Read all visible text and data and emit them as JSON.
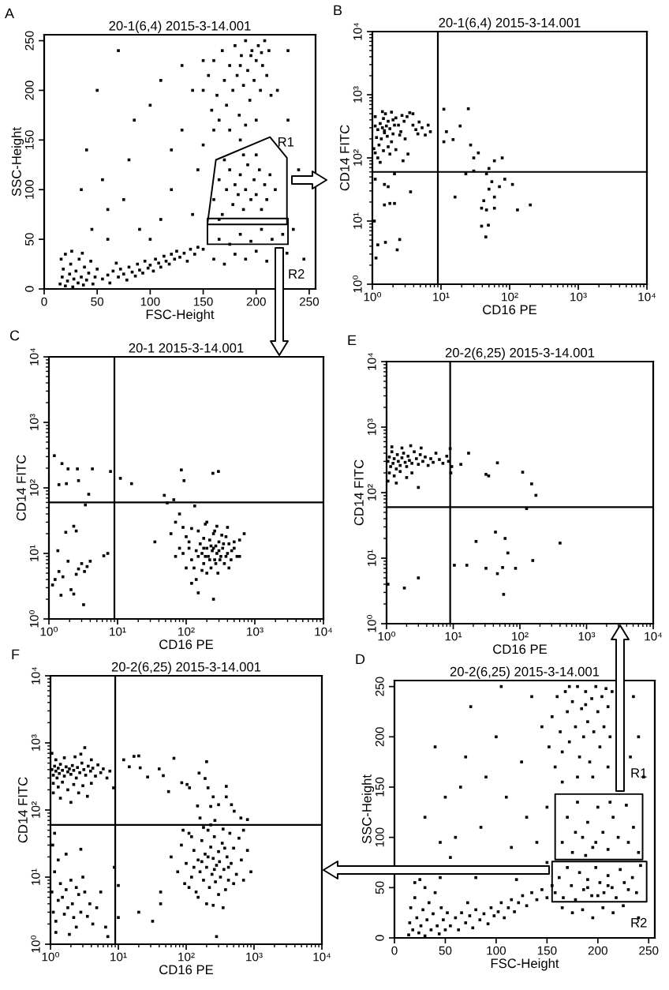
{
  "chart_data": [
    {
      "type": "scatter",
      "title": "20-1(6,4) 2015-3-14.001",
      "xlabel": "FSC-Height",
      "ylabel": "SSC-Height",
      "annotations": [
        "A",
        "R1",
        "R2"
      ],
      "xlim": [
        0,
        256
      ],
      "ylim": [
        0,
        256
      ],
      "xticks": [
        0,
        50,
        100,
        150,
        200,
        250
      ],
      "yticks": [
        0,
        50,
        100,
        150,
        200,
        250
      ],
      "marker": "square",
      "series": [
        {
          "color": "#000000",
          "x": [
            15,
            17,
            18,
            20,
            22,
            24,
            25,
            27,
            28,
            30,
            32,
            33,
            35,
            37,
            38,
            40,
            42,
            44,
            46,
            48,
            50,
            16,
            20,
            26,
            36,
            55,
            60,
            62,
            65,
            70,
            72,
            75,
            78,
            80,
            83,
            86,
            88,
            90,
            93,
            95,
            98,
            100,
            103,
            105,
            108,
            110,
            113,
            115,
            118,
            120,
            123,
            125,
            128,
            132,
            138,
            142,
            145,
            135,
            68,
            150,
            155,
            158,
            160,
            163,
            165,
            168,
            170,
            172,
            175,
            178,
            180,
            182,
            184,
            186,
            188,
            190,
            192,
            194,
            196,
            198,
            200,
            202,
            204,
            206,
            208,
            210,
            212,
            214,
            190,
            175,
            185,
            200,
            160,
            195,
            185,
            205,
            160,
            165,
            168,
            172,
            175,
            178,
            180,
            183,
            185,
            188,
            190,
            192,
            195,
            198,
            200,
            203,
            205,
            208,
            210,
            213,
            170,
            188,
            200,
            165,
            218,
            150,
            160,
            165,
            170,
            175,
            180,
            185,
            190,
            195,
            200,
            205,
            210,
            215,
            229,
            225,
            40,
            50,
            60,
            70,
            80,
            90,
            100,
            110,
            120,
            130,
            140,
            145,
            150,
            100,
            60,
            45,
            35,
            55,
            75,
            85,
            120,
            130,
            140,
            230,
            240,
            235,
            245,
            230,
            220,
            110,
            150
          ],
          "values": [
            5,
            12,
            20,
            3,
            8,
            15,
            25,
            2,
            10,
            18,
            6,
            30,
            12,
            4,
            22,
            9,
            16,
            28,
            5,
            12,
            20,
            30,
            35,
            38,
            36,
            10,
            14,
            6,
            18,
            12,
            20,
            15,
            9,
            22,
            17,
            13,
            25,
            19,
            16,
            28,
            21,
            24,
            18,
            30,
            26,
            22,
            33,
            28,
            25,
            35,
            30,
            38,
            32,
            36,
            40,
            35,
            42,
            28,
            26,
            200,
            215,
            180,
            230,
            195,
            170,
            240,
            210,
            185,
            225,
            200,
            245,
            215,
            175,
            235,
            205,
            250,
            220,
            190,
            240,
            210,
            230,
            245,
            200,
            225,
            250,
            215,
            240,
            195,
            165,
            160,
            150,
            170,
            160,
            235,
            225,
            238,
            90,
            110,
            75,
            100,
            120,
            85,
            105,
            95,
            115,
            80,
            100,
            125,
            90,
            110,
            95,
            120,
            80,
            105,
            90,
            115,
            130,
            135,
            135,
            70,
            100,
            40,
            30,
            50,
            25,
            45,
            35,
            55,
            30,
            48,
            38,
            60,
            28,
            50,
            36,
            55,
            140,
            200,
            80,
            240,
            130,
            60,
            185,
            210,
            100,
            160,
            75,
            120,
            230,
            50,
            50,
            60,
            100,
            110,
            90,
            170,
            140,
            225,
            200,
            170,
            120,
            60,
            30,
            240,
            200,
            70,
            145
          ]
        }
      ]
    },
    {
      "type": "scatter",
      "title": "20-1(6,4) 2015-3-14.001",
      "xlabel": "CD16 PE",
      "ylabel": "CD14 FITC",
      "annotations": [
        "B"
      ],
      "log": "xy",
      "xlim": [
        1,
        10000
      ],
      "ylim": [
        1,
        10000
      ],
      "xticks": [
        {
          "value": 1,
          "label": "10⁰"
        },
        {
          "value": 10,
          "label": "10¹"
        },
        {
          "value": 100,
          "label": "10²"
        },
        {
          "value": 1000,
          "label": "10³"
        },
        {
          "value": 10000,
          "label": "10⁴"
        }
      ],
      "yticks": [
        {
          "value": 1,
          "label": "10⁰"
        },
        {
          "value": 10,
          "label": "10¹"
        },
        {
          "value": 100,
          "label": "10²"
        },
        {
          "value": 1000,
          "label": "10³"
        },
        {
          "value": 10000,
          "label": "10⁴"
        }
      ],
      "marker": "square",
      "ref_lines": [
        {
          "axis": "x",
          "value": 9,
          "color": "#000000"
        },
        {
          "axis": "y",
          "value": 60,
          "color": "#000000"
        }
      ],
      "series": [
        {
          "color": "#000000",
          "x": [
            1.1,
            1.2,
            1.3,
            1.4,
            1.5,
            1.6,
            1.7,
            1.8,
            2.0,
            2.1,
            1.15,
            1.25,
            1.35,
            1.45,
            1.55,
            1.65,
            1.9,
            2.0,
            2.2,
            2.4,
            2.6,
            2.9,
            3.2,
            3.5,
            3.9,
            4.3,
            4.8,
            5.3,
            5.9,
            6.5,
            7.0,
            1.05,
            1.1,
            1.2,
            1.45,
            1.8,
            2.2,
            2.8,
            3.3,
            1.4,
            1.9,
            2.5,
            1.1,
            1.5,
            1.7,
            3.0,
            3.9,
            1.3,
            2.7,
            4.6,
            11,
            25,
            12,
            19,
            15,
            27,
            30,
            35,
            50,
            60,
            78,
            46,
            55,
            71,
            85,
            110,
            50,
            60,
            42,
            39,
            46,
            60,
            130,
            200,
            39,
            49,
            45,
            16,
            11,
            23,
            30,
            1.07,
            1.2,
            1.13,
            1.5,
            1.8,
            2.1,
            1.55,
            2.3,
            2.5,
            3.6,
            1.5,
            1.7,
            2.1,
            1.1
          ],
          "values": [
            320,
            280,
            350,
            300,
            250,
            320,
            380,
            290,
            240,
            330,
            210,
            160,
            200,
            420,
            500,
            220,
            180,
            400,
            430,
            330,
            260,
            380,
            450,
            520,
            330,
            280,
            370,
            300,
            230,
            330,
            260,
            140,
            120,
            100,
            130,
            115,
            135,
            90,
            115,
            540,
            530,
            230,
            450,
            270,
            150,
            200,
            500,
            85,
            470,
            240,
            590,
            600,
            260,
            320,
            195,
            160,
            100,
            120,
            68,
            90,
            100,
            56,
            42,
            35,
            46,
            38,
            32,
            24,
            21,
            16,
            15,
            16,
            15,
            18,
            8.3,
            8.6,
            5.6,
            24,
            180,
            56,
            62,
            10,
            4.2,
            2.6,
            18,
            19,
            19,
            4.6,
            3.5,
            5.1,
            29,
            38,
            35,
            56,
            46
          ]
        }
      ]
    },
    {
      "type": "scatter",
      "title": "20-1 2015-3-14.001",
      "xlabel": "CD16 PE",
      "ylabel": "CD14 FITC",
      "annotations": [
        "C"
      ],
      "log": "xy",
      "xlim": [
        1,
        10000
      ],
      "ylim": [
        1,
        10000
      ],
      "xticks": [
        {
          "value": 1,
          "label": "10⁰"
        },
        {
          "value": 10,
          "label": "10¹"
        },
        {
          "value": 100,
          "label": "10²"
        },
        {
          "value": 1000,
          "label": "10³"
        },
        {
          "value": 10000,
          "label": "10⁴"
        }
      ],
      "yticks": [
        {
          "value": 1,
          "label": "10⁰"
        },
        {
          "value": 10,
          "label": "10¹"
        },
        {
          "value": 100,
          "label": "10²"
        },
        {
          "value": 1000,
          "label": "10³"
        },
        {
          "value": 10000,
          "label": "10⁴"
        }
      ],
      "marker": "square",
      "ref_lines": [
        {
          "axis": "x",
          "value": 9,
          "color": "#000000"
        },
        {
          "axis": "y",
          "value": 60,
          "color": "#000000"
        }
      ],
      "series": [
        {
          "color": "#000000",
          "x": [
            1.2,
            1.55,
            1.9,
            2.6,
            4.3,
            7.9,
            11,
            16,
            1.4,
            1.8,
            2.7,
            3.8,
            3.4,
            85,
            93,
            245,
            295,
            48,
            53,
            66,
            133,
            1.35,
            1.76,
            2.3,
            2.5,
            1.23,
            1.4,
            1.6,
            2.1,
            2.3,
            2.7,
            3,
            3.3,
            3.6,
            4,
            1.9,
            3.2,
            1.5,
            6.3,
            7.2,
            1.13,
            2.5,
            35,
            60,
            70,
            80,
            90,
            100,
            110,
            120,
            130,
            140,
            150,
            160,
            170,
            180,
            190,
            200,
            210,
            220,
            230,
            240,
            250,
            260,
            270,
            280,
            290,
            300,
            320,
            340,
            360,
            380,
            400,
            420,
            450,
            500,
            550,
            600,
            700,
            100,
            120,
            150,
            180,
            200,
            220,
            250,
            270,
            300,
            330,
            350,
            380,
            420,
            460,
            90,
            110,
            140,
            170,
            190,
            230,
            260,
            310,
            150,
            250,
            120,
            80,
            70,
            200,
            280,
            400,
            500,
            600,
            180
          ],
          "values": [
            310,
            235,
            195,
            195,
            195,
            178,
            140,
            116,
            112,
            116,
            129,
            80,
            55,
            188,
            129,
            167,
            178,
            77,
            59,
            66,
            53,
            11,
            21,
            26,
            22,
            4,
            5.3,
            4.4,
            2.8,
            2.4,
            5.8,
            7,
            5.3,
            6.3,
            7.6,
            7.6,
            1.65,
            2.3,
            9.2,
            10,
            3.3,
            4.8,
            15,
            20,
            30,
            40,
            25,
            18,
            12,
            8,
            6,
            4,
            22,
            14,
            10,
            7,
            28,
            12,
            9,
            16,
            6,
            11,
            20,
            8,
            13,
            10,
            5,
            15,
            9,
            12,
            7,
            18,
            10,
            14,
            8,
            12,
            9,
            16,
            20,
            6,
            24,
            9,
            17,
            5,
            8,
            12,
            7,
            11,
            19,
            14,
            9,
            6,
            11,
            10,
            15,
            11,
            5.5,
            9,
            13,
            22,
            8,
            2.5,
            2,
            3.5,
            12,
            9,
            30,
            26,
            25,
            15,
            9,
            12
          ]
        }
      ]
    },
    {
      "type": "scatter",
      "title": "20-2(6,25) 2015-3-14.001",
      "xlabel": "CD16 PE",
      "ylabel": "CD14 FITC",
      "annotations": [
        "E"
      ],
      "log": "xy",
      "xlim": [
        1,
        10000
      ],
      "ylim": [
        1,
        10000
      ],
      "xticks": [
        {
          "value": 1,
          "label": "10⁰"
        },
        {
          "value": 10,
          "label": "10¹"
        },
        {
          "value": 100,
          "label": "10²"
        },
        {
          "value": 1000,
          "label": "10³"
        },
        {
          "value": 10000,
          "label": "10⁴"
        }
      ],
      "yticks": [
        {
          "value": 1,
          "label": "10⁰"
        },
        {
          "value": 10,
          "label": "10¹"
        },
        {
          "value": 100,
          "label": "10²"
        },
        {
          "value": 1000,
          "label": "10³"
        },
        {
          "value": 10000,
          "label": "10⁴"
        }
      ],
      "marker": "square",
      "ref_lines": [
        {
          "axis": "x",
          "value": 9,
          "color": "#000000"
        },
        {
          "axis": "y",
          "value": 60,
          "color": "#000000"
        }
      ],
      "series": [
        {
          "color": "#000000",
          "x": [
            1.05,
            1.1,
            1.15,
            1.2,
            1.25,
            1.3,
            1.4,
            1.45,
            1.5,
            1.6,
            1.7,
            1.8,
            1.9,
            2.0,
            2.1,
            2.2,
            2.4,
            2.6,
            2.8,
            3.0,
            3.2,
            3.5,
            3.8,
            4.2,
            4.6,
            5.0,
            5.5,
            6.2,
            7.0,
            8.0,
            9.0,
            1.1,
            1.3,
            1.6,
            2.0,
            2.4,
            3.0,
            1.2,
            1.7,
            2.3,
            3.3,
            1.05,
            1.4,
            9.5,
            9.2,
            8.5,
            17,
            13,
            46,
            31,
            34,
            110,
            150,
            174,
            126,
            43,
            22,
            60,
            66,
            400,
            156,
            10.4,
            16,
            31,
            46,
            55,
            86,
            57,
            3,
            1.85,
            1.05
          ],
          "values": [
            300,
            350,
            250,
            420,
            280,
            330,
            230,
            380,
            300,
            260,
            340,
            400,
            290,
            250,
            360,
            310,
            280,
            420,
            330,
            270,
            380,
            300,
            350,
            260,
            330,
            290,
            400,
            320,
            280,
            360,
            470,
            200,
            180,
            210,
            170,
            200,
            120,
            500,
            480,
            520,
            480,
            150,
            140,
            250,
            200,
            300,
            400,
            270,
            285,
            190,
            180,
            205,
            136,
            91,
            57,
            25,
            18,
            20,
            12,
            17,
            9.2,
            7.8,
            7.8,
            7,
            5.8,
            7.2,
            7,
            2.8,
            5,
            3.5,
            4.0
          ]
        }
      ]
    },
    {
      "type": "scatter",
      "title": "20-2(6,25) 2015-3-14.001",
      "xlabel": "CD16 PE",
      "ylabel": "CD14 FITC",
      "annotations": [
        "F"
      ],
      "log": "xy",
      "xlim": [
        1,
        10000
      ],
      "ylim": [
        1,
        10000
      ],
      "xticks": [
        {
          "value": 1,
          "label": "10⁰"
        },
        {
          "value": 10,
          "label": "10¹"
        },
        {
          "value": 100,
          "label": "10²"
        },
        {
          "value": 1000,
          "label": "10³"
        },
        {
          "value": 10000,
          "label": "10⁴"
        }
      ],
      "yticks": [
        {
          "value": 1,
          "label": "10⁰"
        },
        {
          "value": 10,
          "label": "10¹"
        },
        {
          "value": 100,
          "label": "10²"
        },
        {
          "value": 1000,
          "label": "10³"
        },
        {
          "value": 10000,
          "label": "10⁴"
        }
      ],
      "marker": "square",
      "ref_lines": [
        {
          "axis": "x",
          "value": 9,
          "color": "#000000"
        },
        {
          "axis": "y",
          "value": 60,
          "color": "#000000"
        }
      ],
      "series": [
        {
          "color": "#000000",
          "x": [
            1.05,
            1.1,
            1.15,
            1.2,
            1.25,
            1.3,
            1.35,
            1.4,
            1.5,
            1.6,
            1.7,
            1.8,
            1.9,
            2.0,
            2.1,
            2.2,
            2.4,
            2.5,
            2.7,
            2.9,
            3.1,
            3.3,
            3.6,
            3.9,
            4.2,
            4.6,
            5.0,
            5.5,
            6.0,
            6.8,
            7.5,
            1.1,
            1.3,
            1.5,
            1.8,
            2.2,
            2.6,
            3.0,
            3.5,
            4.0,
            1.2,
            1.6,
            2.3,
            3.2,
            4.0,
            1.1,
            1.4,
            2.0,
            1.05,
            2.8,
            12,
            17,
            20,
            14.5,
            27,
            40,
            46,
            66,
            55,
            86,
            103,
            112,
            155,
            200,
            210,
            250,
            230,
            390,
            390,
            300,
            510,
            640,
            800,
            160,
            265,
            147,
            190,
            465,
            21,
            8.5,
            60,
            75,
            85,
            95,
            100,
            110,
            120,
            130,
            140,
            150,
            160,
            170,
            180,
            190,
            200,
            210,
            220,
            230,
            240,
            250,
            260,
            270,
            280,
            300,
            320,
            340,
            360,
            380,
            400,
            420,
            440,
            460,
            500,
            550,
            600,
            650,
            700,
            800,
            900,
            150,
            200,
            250,
            300,
            120,
            180,
            230,
            350,
            500,
            130,
            170,
            210,
            260,
            310,
            370,
            420,
            90,
            110,
            350,
            280,
            700,
            20,
            32,
            42,
            42,
            10,
            10,
            8.7,
            1.05,
            1.1,
            1.2,
            1.3,
            1.4,
            1.5,
            1.6,
            1.7,
            1.8,
            2.0,
            2.1,
            2.2,
            2.4,
            2.6,
            2.8,
            3.0,
            3.2,
            3.5,
            3.8,
            4.2,
            4.8,
            5.5,
            6.5,
            7,
            1.15,
            1.3,
            1.7,
            2.8,
            1.08,
            1.15,
            1.2,
            2.4,
            1.9
          ],
          "values": [
            400,
            330,
            450,
            380,
            300,
            420,
            350,
            480,
            390,
            320,
            440,
            370,
            410,
            340,
            460,
            390,
            300,
            430,
            360,
            500,
            400,
            330,
            450,
            380,
            420,
            320,
            470,
            360,
            410,
            300,
            380,
            250,
            220,
            260,
            200,
            240,
            180,
            230,
            160,
            250,
            560,
            600,
            620,
            850,
            560,
            180,
            150,
            130,
            700,
            680,
            560,
            630,
            640,
            440,
            310,
            410,
            325,
            590,
            188,
            255,
            240,
            214,
            355,
            525,
            214,
            157,
            113,
            225,
            157,
            120,
            96,
            76,
            72,
            76,
            70,
            115,
            295,
            120,
            425,
            214,
            20,
            12,
            30,
            8,
            16,
            45,
            10,
            25,
            6,
            18,
            12,
            35,
            9,
            22,
            14,
            50,
            7,
            28,
            11,
            19,
            40,
            8.5,
            15,
            24,
            10,
            32,
            13,
            6.5,
            20,
            9,
            45,
            16,
            27,
            11,
            38,
            18,
            50,
            25,
            12,
            5,
            4,
            3.8,
            5.5,
            40,
            55,
            60,
            52,
            8,
            14,
            17,
            20,
            13,
            17,
            27,
            14,
            50,
            7,
            3.5,
            1.3,
            9,
            3,
            2.2,
            6,
            4,
            2.5,
            7.5,
            14,
            6,
            3,
            2.2,
            4.5,
            8,
            5,
            2.8,
            6.5,
            3.5,
            9,
            4,
            2.5,
            7,
            5.5,
            3,
            10,
            6,
            2.6,
            4,
            2,
            3.5,
            6,
            1.8,
            1.3,
            12,
            18,
            22,
            26,
            30,
            45,
            1.5,
            1.8,
            1.4
          ]
        }
      ]
    },
    {
      "type": "scatter",
      "title": "20-2(6,25) 2015-3-14.001",
      "xlabel": "FSC-Height",
      "ylabel": "SSC-Height",
      "annotations": [
        "D",
        "R1",
        "R2"
      ],
      "xlim": [
        0,
        256
      ],
      "ylim": [
        0,
        256
      ],
      "xticks": [
        0,
        50,
        100,
        150,
        200,
        250
      ],
      "yticks": [
        0,
        50,
        100,
        150,
        200,
        250
      ],
      "marker": "square",
      "series": [
        {
          "color": "#000000",
          "x": [
            14,
            15,
            16,
            18,
            20,
            22,
            24,
            26,
            28,
            30,
            32,
            34,
            36,
            38,
            40,
            42,
            44,
            46,
            48,
            50,
            52,
            20,
            30,
            25,
            45,
            55,
            60,
            63,
            66,
            70,
            74,
            77,
            80,
            84,
            88,
            92,
            95,
            98,
            102,
            105,
            108,
            112,
            115,
            118,
            122,
            126,
            130,
            135,
            140,
            145,
            150,
            155,
            72,
            152,
            155,
            158,
            160,
            163,
            165,
            168,
            170,
            172,
            175,
            178,
            180,
            182,
            184,
            186,
            188,
            190,
            192,
            194,
            196,
            198,
            200,
            202,
            204,
            206,
            208,
            210,
            212,
            214,
            180,
            165,
            195,
            210,
            172,
            188,
            165,
            170,
            175,
            180,
            185,
            190,
            195,
            200,
            205,
            210,
            215,
            220,
            228,
            230,
            235,
            178,
            198,
            188,
            212,
            240,
            158,
            162,
            166,
            170,
            174,
            178,
            182,
            186,
            190,
            194,
            198,
            202,
            206,
            210,
            214,
            218,
            222,
            226,
            230,
            234,
            238,
            242,
            200,
            190,
            210,
            165,
            175,
            185,
            195,
            205,
            215,
            225,
            240,
            30,
            40,
            55,
            65,
            75,
            85,
            100,
            110,
            115,
            125,
            130,
            140,
            145,
            150,
            60,
            80,
            50,
            90,
            120,
            135,
            105,
            240,
            245,
            235,
            232,
            70,
            45,
            150
          ],
          "values": [
            3,
            15,
            30,
            8,
            40,
            20,
            5,
            12,
            28,
            2,
            18,
            35,
            8,
            24,
            45,
            12,
            4,
            30,
            18,
            8,
            25,
            55,
            50,
            58,
            60,
            12,
            20,
            8,
            25,
            15,
            22,
            10,
            28,
            18,
            24,
            14,
            30,
            22,
            26,
            35,
            20,
            30,
            38,
            26,
            35,
            42,
            32,
            45,
            38,
            48,
            40,
            52,
            35,
            190,
            220,
            170,
            240,
            205,
            185,
            245,
            225,
            195,
            235,
            210,
            250,
            180,
            228,
            200,
            245,
            215,
            175,
            238,
            205,
            250,
            225,
            190,
            240,
            210,
            248,
            230,
            200,
            245,
            160,
            155,
            160,
            170,
            250,
            232,
            95,
            120,
            85,
            135,
            100,
            115,
            90,
            130,
            105,
            88,
            120,
            100,
            132,
            95,
            110,
            105,
            95,
            82,
            135,
            85,
            45,
            60,
            40,
            70,
            52,
            38,
            65,
            48,
            58,
            42,
            70,
            55,
            45,
            62,
            50,
            40,
            68,
            55,
            48,
            60,
            45,
            72,
            42,
            50,
            52,
            30,
            25,
            28,
            20,
            30,
            25,
            32,
            20,
            120,
            190,
            80,
            150,
            230,
            110,
            200,
            140,
            90,
            175,
            120,
            95,
            210,
            130,
            100,
            60,
            140,
            160,
            58,
            240,
            250,
            200,
            160,
            240,
            180,
            180,
            95,
            75
          ]
        }
      ]
    }
  ]
}
